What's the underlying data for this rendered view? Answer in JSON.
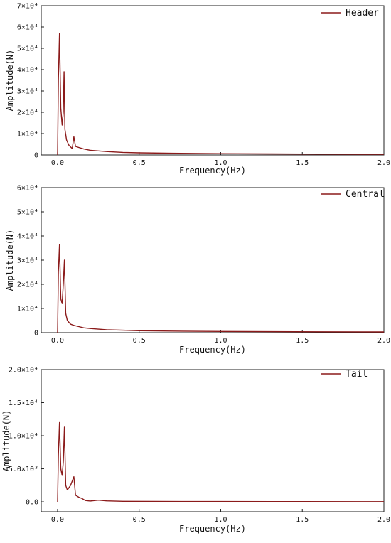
{
  "chart_data": [
    {
      "type": "line",
      "xlabel": "Frequency(Hz)",
      "ylabel": "Amplitude(N)",
      "xlim": [
        -0.1,
        2.0
      ],
      "ylim": [
        0,
        70000
      ],
      "x_ticks": [
        0.0,
        0.5,
        1.0,
        1.5,
        2.0
      ],
      "x_tick_labels": [
        "0.0",
        "0.5",
        "1.0",
        "1.5",
        "2.0"
      ],
      "y_ticks": [
        0,
        10000,
        20000,
        30000,
        40000,
        50000,
        60000,
        70000
      ],
      "y_tick_labels": [
        "0",
        "1×10⁴",
        "2×10⁴",
        "3×10⁴",
        "4×10⁴",
        "5×10⁴",
        "6×10⁴",
        "7×10⁴"
      ],
      "legend_position": "top-right",
      "grid": false,
      "series": [
        {
          "name": "Header",
          "color": "#8b1a1a",
          "x": [
            0.0,
            0.005,
            0.012,
            0.02,
            0.028,
            0.035,
            0.04,
            0.045,
            0.055,
            0.07,
            0.09,
            0.1,
            0.11,
            0.13,
            0.16,
            0.2,
            0.3,
            0.4,
            0.5,
            0.7,
            1.0,
            1.3,
            1.6,
            2.0
          ],
          "y": [
            0,
            35000,
            57000,
            22000,
            14000,
            20000,
            39000,
            12000,
            7000,
            4500,
            3000,
            8500,
            4000,
            3500,
            2800,
            2200,
            1600,
            1200,
            1000,
            800,
            600,
            500,
            400,
            300
          ]
        }
      ]
    },
    {
      "type": "line",
      "xlabel": "Frequency(Hz)",
      "ylabel": "Amplitude(N)",
      "xlim": [
        -0.1,
        2.0
      ],
      "ylim": [
        0,
        60000
      ],
      "x_ticks": [
        0.0,
        0.5,
        1.0,
        1.5,
        2.0
      ],
      "x_tick_labels": [
        "0.0",
        "0.5",
        "1.0",
        "1.5",
        "2.0"
      ],
      "y_ticks": [
        0,
        10000,
        20000,
        30000,
        40000,
        50000,
        60000
      ],
      "y_tick_labels": [
        "0",
        "1×10⁴",
        "2×10⁴",
        "3×10⁴",
        "4×10⁴",
        "5×10⁴",
        "6×10⁴"
      ],
      "legend_position": "top-right",
      "grid": false,
      "series": [
        {
          "name": "Central",
          "color": "#8b1a1a",
          "x": [
            0.0,
            0.005,
            0.012,
            0.02,
            0.028,
            0.035,
            0.042,
            0.05,
            0.06,
            0.08,
            0.1,
            0.13,
            0.16,
            0.2,
            0.3,
            0.4,
            0.5,
            0.7,
            1.0,
            1.3,
            1.6,
            2.0
          ],
          "y": [
            0,
            25000,
            36500,
            14000,
            12000,
            20000,
            30000,
            8000,
            5000,
            3500,
            3000,
            2500,
            2000,
            1700,
            1200,
            1000,
            800,
            650,
            500,
            420,
            350,
            300
          ]
        }
      ]
    },
    {
      "type": "line",
      "xlabel": "Frequency(Hz)",
      "ylabel": "Amplitude(N)",
      "xlim": [
        -0.1,
        2.0
      ],
      "ylim": [
        -1500,
        20000
      ],
      "x_ticks": [
        0.0,
        0.5,
        1.0,
        1.5,
        2.0
      ],
      "x_tick_labels": [
        "0.0",
        "0.5",
        "1.0",
        "1.5",
        "2.0"
      ],
      "y_ticks": [
        0,
        5000,
        10000,
        15000,
        20000
      ],
      "y_tick_labels": [
        "0.0",
        "5.0×10³",
        "1.0×10⁴",
        "1.5×10⁴",
        "2.0×10⁴"
      ],
      "legend_position": "top-right",
      "grid": false,
      "series": [
        {
          "name": "Tail",
          "color": "#8b1a1a",
          "x": [
            0.0,
            0.005,
            0.012,
            0.02,
            0.028,
            0.035,
            0.042,
            0.05,
            0.06,
            0.08,
            0.1,
            0.11,
            0.13,
            0.15,
            0.17,
            0.2,
            0.25,
            0.3,
            0.4,
            0.6,
            1.0,
            1.5,
            2.0
          ],
          "y": [
            0,
            7000,
            12000,
            5000,
            4000,
            6000,
            11300,
            2500,
            1800,
            2500,
            3800,
            1000,
            700,
            500,
            200,
            120,
            250,
            150,
            80,
            60,
            50,
            40,
            30
          ]
        }
      ]
    }
  ]
}
